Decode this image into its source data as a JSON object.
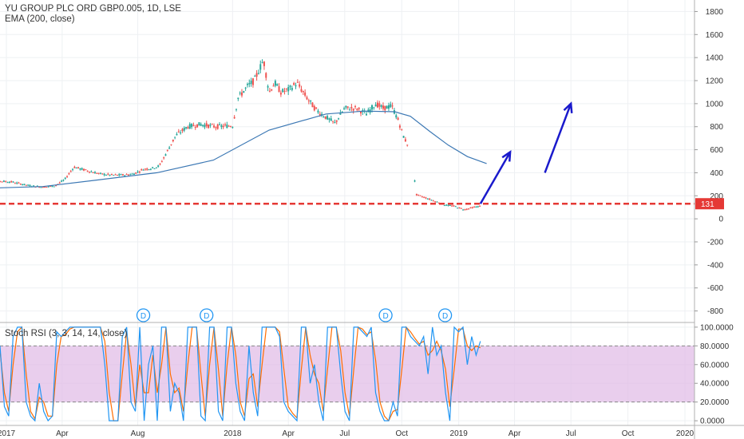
{
  "header": {
    "title": "YU GROUP PLC ORD GBP0.005, 1D, LSE",
    "ema_legend": "EMA (200, close)",
    "stoch_legend": "Stoch RSI (3, 3, 14, 14, close)"
  },
  "colors": {
    "up_candle": "#26a69a",
    "down_candle": "#ef5350",
    "ema_line": "#3c78b4",
    "support_line": "#e53935",
    "arrows": "#1a1acc",
    "stoch_k": "#2196f3",
    "stoch_d": "#ff6d00",
    "stoch_band": "#e1bee7",
    "dividend_marker": "#2196f3"
  },
  "chart_data": [
    {
      "type": "line",
      "title": "YU GROUP PLC ORD GBP0.005, 1D, LSE",
      "ylim": [
        -900,
        1900
      ],
      "y_ticks": [
        1800,
        1600,
        1400,
        1200,
        1000,
        800,
        600,
        400,
        200,
        0,
        -200,
        -400,
        -600,
        -800
      ],
      "x_ticks": [
        "2017",
        "Apr",
        "Jul",
        "Aug",
        "Oct",
        "2018",
        "Apr",
        "Jul",
        "Oct",
        "2019",
        "Apr",
        "Jul",
        "Oct",
        "2020"
      ],
      "x_tick_labels_shown": [
        "2017",
        "Apr",
        "Aug",
        "2018",
        "Apr",
        "Jul",
        "Oct",
        "2019",
        "Apr",
        "Jul",
        "Oct",
        "2020"
      ],
      "price_label": "131",
      "support_level": 131,
      "series": [
        {
          "name": "Price",
          "x": [
            "2016-11-25",
            "2016-12-15",
            "2017-01-10",
            "2017-02-05",
            "2017-03-01",
            "2017-03-20",
            "2017-04-05",
            "2017-04-20",
            "2017-05-10",
            "2017-06-01",
            "2017-06-20",
            "2017-07-10",
            "2017-07-25",
            "2017-08-10",
            "2017-08-25",
            "2017-09-05",
            "2017-10-01",
            "2017-10-20",
            "2017-11-10",
            "2017-12-05",
            "2018-01-01",
            "2018-01-10",
            "2018-01-25",
            "2018-02-05",
            "2018-02-20",
            "2018-03-01",
            "2018-03-10",
            "2018-03-20",
            "2018-04-01",
            "2018-04-15",
            "2018-05-01",
            "2018-05-15",
            "2018-06-01",
            "2018-06-15",
            "2018-07-01",
            "2018-07-20",
            "2018-08-05",
            "2018-08-20",
            "2018-09-01",
            "2018-09-15",
            "2018-09-25",
            "2018-10-05",
            "2018-10-15",
            "2018-10-25",
            "2018-11-10",
            "2018-11-25",
            "2018-12-10",
            "2018-12-25",
            "2019-01-10",
            "2019-01-25",
            "2019-02-05"
          ],
          "values": [
            320,
            330,
            320,
            290,
            275,
            285,
            340,
            450,
            420,
            390,
            380,
            380,
            390,
            430,
            440,
            460,
            720,
            800,
            820,
            800,
            810,
            1050,
            1150,
            1200,
            1380,
            1100,
            1180,
            1100,
            1120,
            1180,
            1050,
            950,
            880,
            830,
            960,
            960,
            910,
            1000,
            960,
            980,
            860,
            700,
            600,
            210,
            180,
            150,
            120,
            110,
            80,
            100,
            110
          ]
        },
        {
          "name": "EMA (200, close)",
          "x": [
            "2016-11-25",
            "2017-03-01",
            "2017-06-01",
            "2017-09-01",
            "2017-12-01",
            "2018-03-01",
            "2018-06-01",
            "2018-08-01",
            "2018-09-20",
            "2018-10-15",
            "2018-11-15",
            "2018-12-15",
            "2019-01-15",
            "2019-02-15"
          ],
          "values": [
            265,
            280,
            340,
            400,
            510,
            770,
            910,
            935,
            930,
            890,
            760,
            640,
            540,
            480
          ]
        }
      ],
      "annotations": [
        {
          "type": "dividend",
          "label": "D",
          "x": "2017-08-10"
        },
        {
          "type": "dividend",
          "label": "D",
          "x": "2017-11-20"
        },
        {
          "type": "dividend",
          "label": "D",
          "x": "2018-09-05"
        },
        {
          "type": "dividend",
          "label": "D",
          "x": "2018-12-10"
        },
        {
          "type": "arrow",
          "from": [
            "2019-02-05",
            131
          ],
          "to": [
            "2019-03-25",
            580
          ]
        },
        {
          "type": "arrow",
          "from": [
            "2019-05-20",
            400
          ],
          "to": [
            "2019-07-01",
            1000
          ]
        }
      ],
      "grid": true,
      "legend": "top-left"
    },
    {
      "type": "line",
      "title": "Stoch RSI (3, 3, 14, 14, close)",
      "ylim": [
        -5,
        105
      ],
      "y_ticks": [
        "100.0000",
        "80.0000",
        "60.0000",
        "40.0000",
        "20.0000",
        "0.0000"
      ],
      "bands": [
        20,
        80
      ],
      "series": [
        {
          "name": "%K",
          "values": [
            80,
            15,
            5,
            90,
            100,
            100,
            20,
            5,
            0,
            40,
            10,
            0,
            5,
            95,
            90,
            95,
            100,
            100,
            100,
            100,
            100,
            100,
            100,
            100,
            60,
            0,
            0,
            0,
            90,
            100,
            20,
            10,
            100,
            0,
            60,
            80,
            0,
            100,
            100,
            10,
            40,
            30,
            0,
            100,
            100,
            100,
            5,
            0,
            100,
            100,
            10,
            0,
            100,
            100,
            40,
            10,
            0,
            80,
            30,
            5,
            100,
            100,
            100,
            100,
            90,
            20,
            10,
            5,
            0,
            100,
            100,
            40,
            60,
            20,
            0,
            100,
            100,
            100,
            50,
            10,
            0,
            100,
            100,
            95,
            90,
            100,
            30,
            10,
            0,
            0,
            20,
            5,
            100,
            100,
            90,
            85,
            80,
            90,
            50,
            100,
            70,
            80,
            30,
            0,
            100,
            95,
            100,
            60,
            90,
            70,
            85
          ]
        },
        {
          "name": "%D",
          "values": [
            75,
            30,
            10,
            60,
            95,
            100,
            50,
            10,
            2,
            25,
            20,
            5,
            5,
            60,
            90,
            92,
            98,
            100,
            100,
            100,
            100,
            100,
            100,
            100,
            85,
            30,
            0,
            0,
            50,
            95,
            60,
            15,
            60,
            30,
            30,
            70,
            30,
            60,
            100,
            50,
            30,
            35,
            10,
            60,
            100,
            100,
            50,
            5,
            60,
            100,
            55,
            5,
            60,
            100,
            70,
            20,
            5,
            45,
            50,
            15,
            60,
            100,
            100,
            100,
            95,
            55,
            15,
            8,
            3,
            55,
            100,
            70,
            50,
            40,
            10,
            55,
            100,
            100,
            75,
            30,
            5,
            55,
            100,
            98,
            92,
            95,
            65,
            20,
            5,
            0,
            10,
            12,
            55,
            100,
            95,
            88,
            82,
            85,
            70,
            75,
            85,
            75,
            55,
            15,
            55,
            98,
            98,
            80,
            75,
            80,
            78
          ]
        }
      ],
      "grid": true,
      "legend": "top-left"
    }
  ]
}
